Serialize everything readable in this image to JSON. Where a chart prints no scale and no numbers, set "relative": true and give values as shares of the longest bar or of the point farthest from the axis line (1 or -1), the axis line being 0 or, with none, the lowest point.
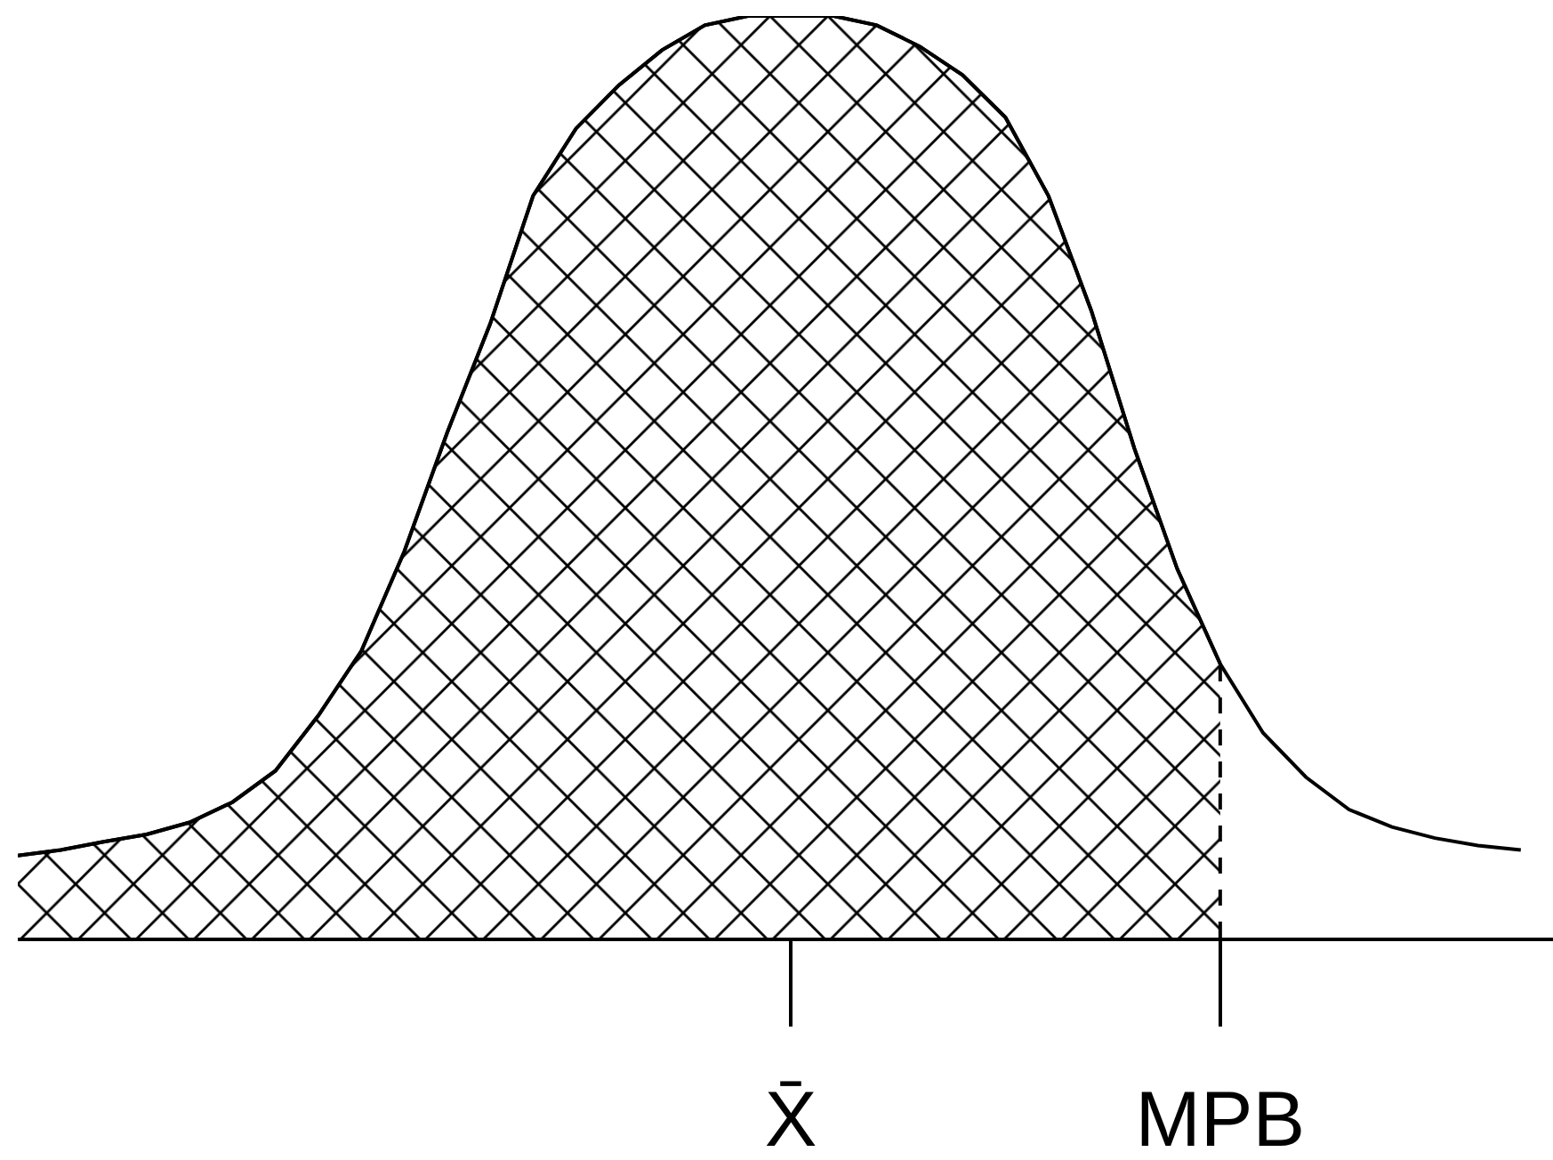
{
  "chart_data": {
    "type": "line",
    "relative": true,
    "grid": false,
    "tick_labels": "x",
    "ref_lines": [
      {
        "axis": "x",
        "value": "MPB",
        "line_style": "dashed",
        "color": "#000000"
      }
    ],
    "categories": [
      null,
      null,
      null,
      null,
      null,
      null,
      null,
      null,
      null,
      null,
      null,
      null,
      null,
      null,
      null,
      null,
      null,
      null,
      "X̄",
      null,
      null,
      null,
      null,
      null,
      null,
      null,
      null,
      null,
      "MPB",
      null,
      null,
      null,
      null,
      null,
      null,
      null
    ],
    "series": [
      {
        "type": "area",
        "color": "#000000",
        "values": [
          0.089,
          0.095,
          0.104,
          0.112,
          0.125,
          0.147,
          0.181,
          0.241,
          0.311,
          0.419,
          0.548,
          0.666,
          0.805,
          0.878,
          0.925,
          0.963,
          0.99,
          1,
          1,
          1,
          0.99,
          0.967,
          0.936,
          0.89,
          0.805,
          0.68,
          0.531,
          0.4,
          0.297,
          null,
          null,
          null,
          null,
          null,
          null,
          null
        ]
      },
      {
        "type": "line",
        "color": "#000000",
        "line_style": "solid",
        "values": [
          0.089,
          0.095,
          0.104,
          0.112,
          0.125,
          0.147,
          0.181,
          0.241,
          0.311,
          0.419,
          0.548,
          0.666,
          0.805,
          0.878,
          0.925,
          0.963,
          0.99,
          1,
          1,
          1,
          0.99,
          0.967,
          0.936,
          0.89,
          0.805,
          0.68,
          0.531,
          0.4,
          0.297,
          0.222,
          0.174,
          0.139,
          0.12,
          0.108,
          0.1,
          0.095
        ]
      }
    ]
  }
}
